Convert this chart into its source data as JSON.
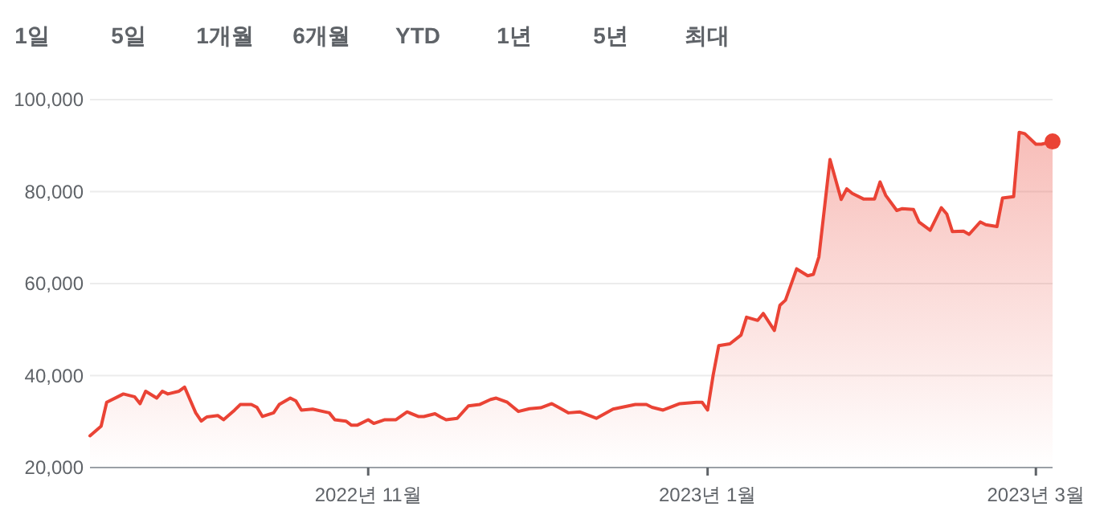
{
  "chart_data": {
    "type": "area",
    "annotations": [
      "1일",
      "5일",
      "1개월",
      "6개월",
      "YTD",
      "1년",
      "5년",
      "최대"
    ],
    "xlim": [
      "2022-09-12",
      "2023-03-04"
    ],
    "xticks": [
      {
        "value": "2022-11-01",
        "label": "2022년 11월"
      },
      {
        "value": "2023-01-01",
        "label": "2023년 1월"
      },
      {
        "value": "2023-03-01",
        "label": "2023년 3월"
      }
    ],
    "ylim": [
      20000,
      100000
    ],
    "yticks": [
      {
        "value": 20000,
        "label": "20,000"
      },
      {
        "value": 40000,
        "label": "40,000"
      },
      {
        "value": 60000,
        "label": "60,000"
      },
      {
        "value": 80000,
        "label": "80,000"
      },
      {
        "value": 100000,
        "label": "100,000"
      }
    ],
    "grid": "y",
    "series": [
      {
        "color": "#ea4335",
        "x": [
          "2022-09-12",
          "2022-09-14",
          "2022-09-15",
          "2022-09-17",
          "2022-09-18",
          "2022-09-20",
          "2022-09-21",
          "2022-09-22",
          "2022-09-24",
          "2022-09-25",
          "2022-09-26",
          "2022-09-28",
          "2022-09-29",
          "2022-10-01",
          "2022-10-02",
          "2022-10-03",
          "2022-10-05",
          "2022-10-06",
          "2022-10-08",
          "2022-10-09",
          "2022-10-11",
          "2022-10-12",
          "2022-10-13",
          "2022-10-15",
          "2022-10-16",
          "2022-10-18",
          "2022-10-19",
          "2022-10-20",
          "2022-10-22",
          "2022-10-25",
          "2022-10-26",
          "2022-10-28",
          "2022-10-29",
          "2022-10-30",
          "2022-11-01",
          "2022-11-02",
          "2022-11-04",
          "2022-11-06",
          "2022-11-08",
          "2022-11-10",
          "2022-11-11",
          "2022-11-13",
          "2022-11-14",
          "2022-11-15",
          "2022-11-17",
          "2022-11-19",
          "2022-11-21",
          "2022-11-23",
          "2022-11-24",
          "2022-11-26",
          "2022-11-28",
          "2022-11-30",
          "2022-12-02",
          "2022-12-04",
          "2022-12-07",
          "2022-12-09",
          "2022-12-12",
          "2022-12-15",
          "2022-12-19",
          "2022-12-21",
          "2022-12-22",
          "2022-12-24",
          "2022-12-27",
          "2022-12-30",
          "2022-12-31",
          "2023-01-01",
          "2023-01-02",
          "2023-01-03",
          "2023-01-05",
          "2023-01-07",
          "2023-01-08",
          "2023-01-10",
          "2023-01-11",
          "2023-01-13",
          "2023-01-14",
          "2023-01-15",
          "2023-01-17",
          "2023-01-19",
          "2023-01-20",
          "2023-01-21",
          "2023-01-23",
          "2023-01-25",
          "2023-01-26",
          "2023-01-27",
          "2023-01-29",
          "2023-01-31",
          "2023-02-01",
          "2023-02-02",
          "2023-02-04",
          "2023-02-05",
          "2023-02-07",
          "2023-02-08",
          "2023-02-10",
          "2023-02-12",
          "2023-02-13",
          "2023-02-14",
          "2023-02-16",
          "2023-02-17",
          "2023-02-19",
          "2023-02-20",
          "2023-02-22",
          "2023-02-23",
          "2023-02-25",
          "2023-02-26",
          "2023-02-27",
          "2023-03-01",
          "2023-03-02",
          "2023-03-04"
        ],
        "values": [
          26900,
          29000,
          34200,
          35400,
          36000,
          35400,
          33900,
          36600,
          35100,
          36600,
          36000,
          36600,
          37500,
          31900,
          30100,
          31000,
          31300,
          30400,
          32500,
          33700,
          33700,
          33100,
          31100,
          31900,
          33700,
          35100,
          34500,
          32500,
          32700,
          31900,
          30400,
          30100,
          29200,
          29200,
          30400,
          29600,
          30400,
          30400,
          32100,
          31100,
          31100,
          31700,
          31000,
          30400,
          30700,
          33400,
          33700,
          34800,
          35100,
          34200,
          32200,
          32800,
          33000,
          33900,
          31900,
          32100,
          30700,
          32700,
          33700,
          33700,
          33100,
          32500,
          33900,
          34200,
          34200,
          32500,
          40100,
          46500,
          46900,
          48800,
          52700,
          52000,
          53500,
          49800,
          55300,
          56400,
          63200,
          61700,
          62000,
          65800,
          87000,
          78300,
          80600,
          79600,
          78400,
          78400,
          82100,
          79200,
          75900,
          76300,
          76100,
          73400,
          71600,
          76500,
          75100,
          71300,
          71400,
          70700,
          73400,
          72800,
          72400,
          78600,
          78900,
          92900,
          92600,
          90300,
          90300,
          90900
        ]
      },
      {
        "type": "scatter",
        "color": "#ea4335",
        "x": [
          "2023-03-04"
        ],
        "values": [
          90900
        ]
      }
    ]
  }
}
